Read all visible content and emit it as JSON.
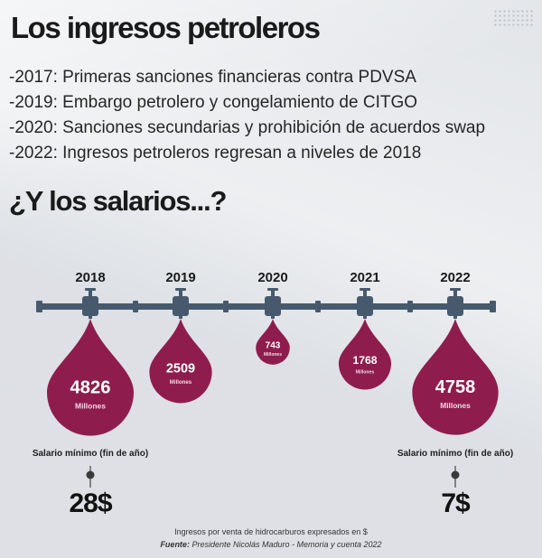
{
  "title": "Los ingresos petroleros",
  "events": [
    "-2017: Primeras sanciones financieras contra PDVSA",
    "-2019: Embargo petrolero y congelamiento de CITGO",
    "-2020: Sanciones secundarias y prohibición de acuerdos swap",
    "-2022: Ingresos petroleros regresan a niveles de 2018"
  ],
  "subtitle": "¿Y los salarios...?",
  "colors": {
    "drop": "#8e1d4d",
    "pipe": "#475a6d",
    "text": "#1c1c1c",
    "background": "#e9ebee"
  },
  "chart_data": {
    "type": "bubble",
    "categories": [
      "2018",
      "2019",
      "2020",
      "2021",
      "2022"
    ],
    "values": [
      4826,
      2509,
      743,
      1768,
      4758
    ],
    "value_labels": [
      "4826",
      "2509",
      "743",
      "1768",
      "4758"
    ],
    "unit_label": "Millones",
    "unit_label_display": [
      "Millones",
      "Millones",
      "Millones",
      "Millones",
      "Millones"
    ]
  },
  "wages": [
    {
      "year": "2018",
      "label": "Salario mínimo (fin de año)",
      "value": "28$"
    },
    {
      "year": "2022",
      "label": "Salario mínimo (fin de año)",
      "value": "7$"
    }
  ],
  "footnote": {
    "line1": "Ingresos por venta de hidrocarburos expresados en $",
    "source_label": "Fuente:",
    "source_text": " Presidente Nicolás Maduro - Memoria y cuenta 2022"
  }
}
